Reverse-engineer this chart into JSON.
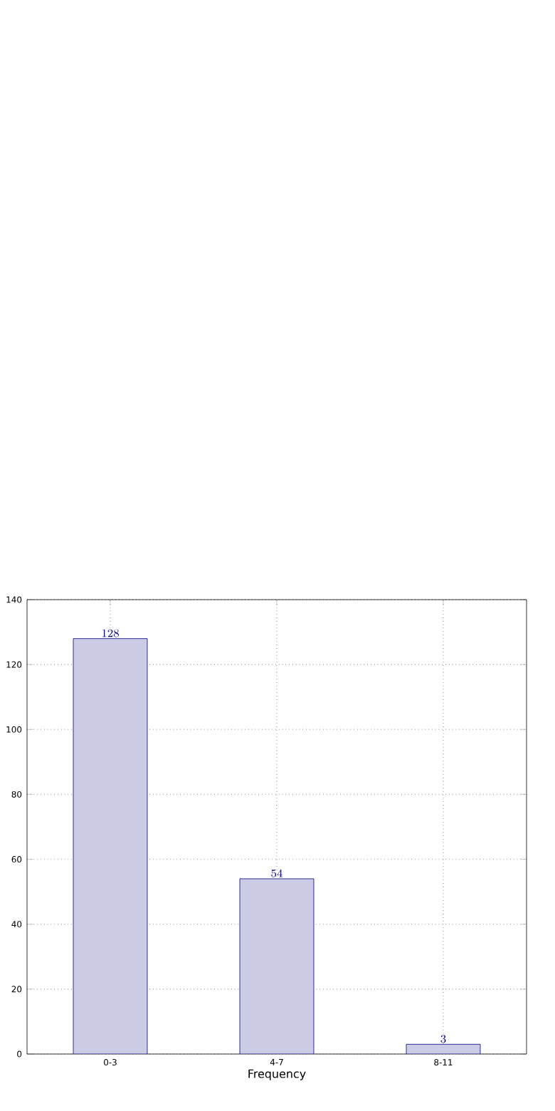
{
  "chart_data": {
    "type": "bar",
    "xlabel": "Frequency",
    "categories": [
      "0-3",
      "4-7",
      "8-11"
    ],
    "values": [
      128,
      54,
      3
    ],
    "color": "#cbcbe5",
    "ylim": [
      0,
      140
    ],
    "yticks": [
      0,
      20,
      40,
      60,
      80,
      100,
      120,
      140
    ],
    "grid": true,
    "data_labels": true
  }
}
